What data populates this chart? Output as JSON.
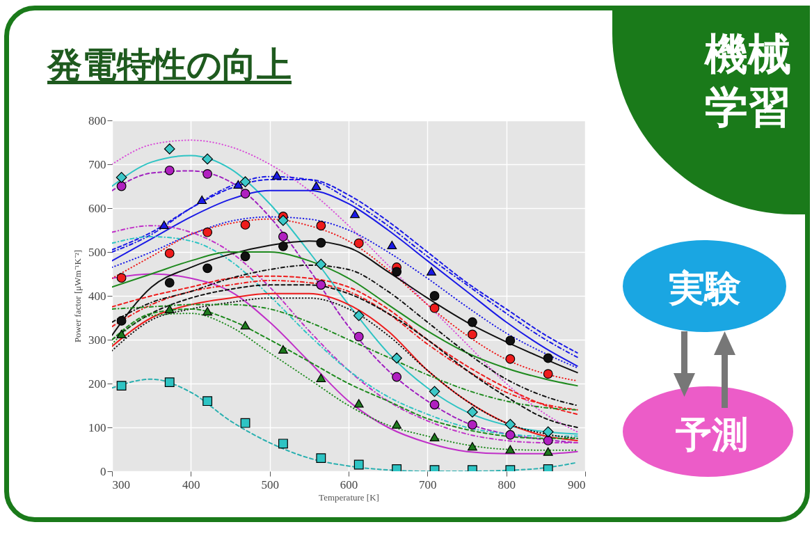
{
  "chart_data": {
    "type": "line",
    "title": "発電特性の向上",
    "xlabel": "Temperature [K]",
    "ylabel": "Power factor [μWm⁻¹K⁻²]",
    "annotations": [
      "機械学習",
      "実験",
      "予測"
    ],
    "x": [
      300,
      350,
      400,
      450,
      500,
      550,
      600,
      650,
      700,
      750,
      800,
      850,
      890
    ],
    "xlim": [
      300,
      900
    ],
    "xticks": [
      300,
      400,
      500,
      600,
      700,
      800,
      900
    ],
    "ylim": [
      0,
      800
    ],
    "yticks": [
      0,
      100,
      200,
      300,
      400,
      500,
      600,
      700,
      800
    ],
    "grid": true,
    "series": [
      {
        "color": "#d94fd9",
        "line_style": "dotted",
        "values": [
          700,
          745,
          755,
          740,
          700,
          640,
          560,
          470,
          380,
          290,
          200,
          130,
          90
        ]
      },
      {
        "color": "#2ec4c4",
        "line_style": "solid",
        "values": [
          650,
          705,
          720,
          690,
          610,
          500,
          380,
          270,
          190,
          135,
          105,
          90,
          85
        ]
      },
      {
        "color": "#a020c0",
        "line_style": "dashed",
        "values": [
          640,
          680,
          685,
          660,
          580,
          460,
          330,
          230,
          160,
          110,
          85,
          72,
          65
        ]
      },
      {
        "color": "#1a1ae6",
        "line_style": "solid",
        "values": [
          480,
          530,
          580,
          620,
          640,
          640,
          610,
          550,
          480,
          410,
          340,
          280,
          240
        ]
      },
      {
        "color": "#1a1ae6",
        "line_style": "dashed",
        "values": [
          505,
          545,
          600,
          645,
          665,
          665,
          630,
          570,
          500,
          430,
          370,
          310,
          270
        ]
      },
      {
        "color": "#1a1ae6",
        "line_style": "dashdot",
        "values": [
          500,
          540,
          600,
          650,
          672,
          665,
          620,
          560,
          490,
          425,
          360,
          300,
          260
        ]
      },
      {
        "color": "#1a1ae6",
        "line_style": "dotted",
        "values": [
          465,
          500,
          540,
          570,
          580,
          575,
          550,
          500,
          440,
          375,
          315,
          268,
          236
        ]
      },
      {
        "color": "#c030c8",
        "line_style": "dashdot",
        "values": [
          545,
          560,
          545,
          500,
          420,
          320,
          230,
          160,
          115,
          85,
          70,
          65,
          65
        ]
      },
      {
        "color": "#c030c8",
        "line_style": "solid",
        "values": [
          440,
          450,
          440,
          410,
          340,
          250,
          160,
          100,
          65,
          45,
          40,
          40,
          45
        ]
      },
      {
        "color": "#2ec4c4",
        "line_style": "dashdot",
        "values": [
          520,
          535,
          525,
          480,
          400,
          310,
          230,
          170,
          130,
          100,
          85,
          80,
          80
        ]
      },
      {
        "color": "#ee1c1c",
        "line_style": "dotted",
        "values": [
          440,
          490,
          540,
          565,
          575,
          560,
          525,
          460,
          380,
          310,
          255,
          222,
          206
        ]
      },
      {
        "color": "#111111",
        "line_style": "solid",
        "values": [
          310,
          420,
          465,
          495,
          515,
          525,
          510,
          455,
          395,
          340,
          295,
          255,
          225
        ]
      },
      {
        "color": "#1e8a1e",
        "line_style": "solid",
        "values": [
          420,
          450,
          480,
          500,
          500,
          480,
          440,
          380,
          320,
          270,
          235,
          210,
          195
        ]
      },
      {
        "color": "#ee1c1c",
        "line_style": "dashed",
        "values": [
          375,
          400,
          420,
          440,
          445,
          440,
          420,
          370,
          300,
          240,
          190,
          150,
          130
        ]
      },
      {
        "color": "#ee1c1c",
        "line_style": "solid",
        "values": [
          285,
          350,
          380,
          395,
          405,
          405,
          380,
          320,
          230,
          160,
          110,
          80,
          70
        ]
      },
      {
        "color": "#ee1c1c",
        "line_style": "dashdot",
        "values": [
          330,
          380,
          410,
          425,
          435,
          430,
          410,
          360,
          290,
          230,
          180,
          152,
          140
        ]
      },
      {
        "color": "#111111",
        "line_style": "dashdot",
        "values": [
          340,
          385,
          410,
          440,
          460,
          470,
          460,
          410,
          340,
          270,
          210,
          170,
          150
        ]
      },
      {
        "color": "#111111",
        "line_style": "dashed",
        "values": [
          300,
          360,
          395,
          415,
          425,
          425,
          405,
          360,
          300,
          230,
          170,
          120,
          100
        ]
      },
      {
        "color": "#111111",
        "line_style": "dotted",
        "values": [
          275,
          345,
          370,
          385,
          395,
          395,
          370,
          310,
          230,
          160,
          110,
          85,
          75
        ]
      },
      {
        "color": "#1e8a1e",
        "line_style": "dashdot",
        "values": [
          370,
          375,
          380,
          380,
          370,
          340,
          300,
          260,
          220,
          185,
          160,
          145,
          140
        ]
      },
      {
        "color": "#1e8a1e",
        "line_style": "dashed",
        "values": [
          300,
          360,
          370,
          345,
          300,
          250,
          200,
          160,
          120,
          95,
          80,
          75,
          75
        ]
      },
      {
        "color": "#1e8a1e",
        "line_style": "dotted",
        "values": [
          290,
          355,
          360,
          330,
          270,
          210,
          150,
          105,
          80,
          60,
          50,
          48,
          48
        ]
      },
      {
        "color": "#2ab0b0",
        "line_style": "dashed",
        "values": [
          190,
          210,
          180,
          115,
          65,
          30,
          12,
          3,
          0,
          0,
          2,
          8,
          20
        ]
      },
      {
        "type": "scatter",
        "marker": "circle",
        "color": "#b020c0",
        "x": [
          312,
          373,
          421,
          469,
          517,
          565,
          613,
          661,
          709,
          757,
          805,
          853
        ],
        "values": [
          650,
          686,
          678,
          633,
          535,
          425,
          307,
          215,
          152,
          106,
          83,
          70
        ]
      },
      {
        "type": "scatter",
        "marker": "triangle",
        "color": "#1a1ae6",
        "x": [
          366,
          414,
          460,
          509,
          559,
          608,
          655,
          705
        ],
        "values": [
          562,
          619,
          654,
          675,
          651,
          587,
          516,
          456
        ]
      },
      {
        "type": "scatter",
        "marker": "circle",
        "color": "#ee1c1c",
        "x": [
          312,
          373,
          421,
          469,
          517,
          565,
          613,
          661,
          709,
          757,
          805,
          853
        ],
        "values": [
          441,
          497,
          545,
          562,
          581,
          560,
          520,
          465,
          372,
          312,
          256,
          222
        ]
      },
      {
        "type": "scatter",
        "marker": "circle",
        "color": "#111111",
        "x": [
          312,
          373,
          421,
          469,
          517,
          565,
          661,
          709,
          757,
          805,
          853
        ],
        "values": [
          343,
          430,
          463,
          490,
          513,
          521,
          455,
          400,
          340,
          298,
          258
        ]
      },
      {
        "type": "scatter",
        "marker": "triangle",
        "color": "#1e7a1e",
        "x": [
          312,
          373,
          421,
          469,
          517,
          565,
          613,
          661,
          709,
          757,
          805,
          853
        ],
        "values": [
          313,
          370,
          365,
          333,
          278,
          213,
          155,
          107,
          78,
          57,
          50,
          45
        ]
      },
      {
        "type": "scatter",
        "marker": "square",
        "color": "#2ec4c4",
        "x": [
          312,
          373,
          421,
          469,
          517,
          565,
          613,
          661,
          709,
          757,
          805,
          853
        ],
        "values": [
          195,
          203,
          160,
          110,
          63,
          30,
          15,
          5,
          3,
          3,
          3,
          5
        ]
      },
      {
        "type": "scatter",
        "marker": "diamond",
        "color": "#3cc8c8",
        "x": [
          312,
          373,
          421,
          469,
          517,
          565,
          613,
          661,
          709,
          757,
          805,
          853
        ],
        "values": [
          670,
          735,
          712,
          660,
          572,
          472,
          355,
          258,
          182,
          135,
          107,
          90
        ]
      }
    ]
  }
}
